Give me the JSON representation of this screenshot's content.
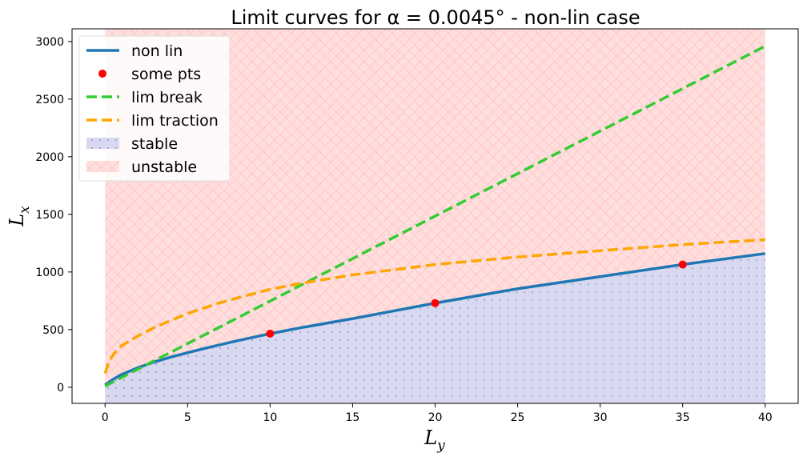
{
  "chart_data": {
    "type": "line",
    "title": "Limit curves for α = 0.0045° - non-lin case",
    "xlabel": "L",
    "xlabel_sub": "y",
    "ylabel": "L",
    "ylabel_sub": "x",
    "xlim": [
      -2,
      42
    ],
    "ylim": [
      -140,
      3110
    ],
    "xticks": [
      0,
      5,
      10,
      15,
      20,
      25,
      30,
      35,
      40
    ],
    "yticks": [
      0,
      500,
      1000,
      1500,
      2000,
      2500,
      3000
    ],
    "grid": false,
    "legend_position": "top-left",
    "series": [
      {
        "name": "non lin",
        "style": "solid",
        "color": "#1f77b4",
        "x": [
          0,
          0.5,
          1,
          2,
          3,
          4,
          5,
          6,
          8,
          10,
          12,
          15,
          20,
          25,
          30,
          35,
          40
        ],
        "y": [
          20,
          70,
          110,
          170,
          220,
          262,
          300,
          336,
          403,
          465,
          520,
          595,
          730,
          855,
          960,
          1065,
          1160
        ]
      },
      {
        "name": "some pts",
        "style": "markers",
        "color": "#ff0000",
        "x": [
          10,
          20,
          35
        ],
        "y": [
          465,
          730,
          1065
        ]
      },
      {
        "name": "lim break",
        "style": "dashed",
        "color": "#33cc33",
        "x": [
          0,
          40
        ],
        "y": [
          10,
          2960
        ]
      },
      {
        "name": "lim traction",
        "style": "dashed",
        "color": "#ffa500",
        "x": [
          0,
          0.25,
          0.5,
          1,
          2,
          3,
          5,
          7,
          10,
          12,
          15,
          20,
          25,
          30,
          35,
          40
        ],
        "y": [
          120,
          225,
          285,
          360,
          445,
          520,
          640,
          735,
          850,
          905,
          975,
          1065,
          1130,
          1185,
          1238,
          1280
        ]
      }
    ],
    "regions": [
      {
        "name": "stable",
        "color": "#d8d8f0",
        "pattern": "dots"
      },
      {
        "name": "unstable",
        "color": "#ffdede",
        "pattern": "cross-hatch"
      }
    ]
  }
}
